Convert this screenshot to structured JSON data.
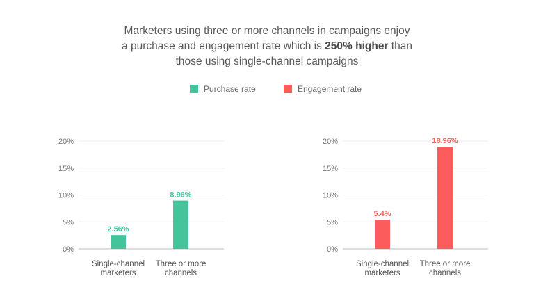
{
  "title": {
    "line1": "Marketers using three or more channels in campaigns enjoy",
    "line2_pre": "a purchase and engagement rate which is ",
    "line2_bold": "250% higher",
    "line2_post": " than",
    "line3": "those using single-channel campaigns"
  },
  "legend": {
    "purchase": "Purchase rate",
    "engagement": "Engagement rate"
  },
  "colors": {
    "purchase": "#45c49c",
    "engagement": "#fd5c5c"
  },
  "chart_data": [
    {
      "type": "bar",
      "categories": [
        [
          "Single-channel",
          "marketers"
        ],
        [
          "Three or more",
          "channels"
        ]
      ],
      "series": [
        {
          "name": "Purchase rate",
          "values": [
            2.56,
            8.96
          ]
        }
      ],
      "data_labels": [
        "2.56%",
        "8.96%"
      ],
      "yticks": [
        "0%",
        "5%",
        "10%",
        "15%",
        "20%"
      ],
      "ylim": [
        0,
        20
      ],
      "grid": true
    },
    {
      "type": "bar",
      "categories": [
        [
          "Single-channel",
          "marketers"
        ],
        [
          "Three or more",
          "channels"
        ]
      ],
      "series": [
        {
          "name": "Engagement rate",
          "values": [
            5.4,
            18.96
          ]
        }
      ],
      "data_labels": [
        "5.4%",
        "18.96%"
      ],
      "yticks": [
        "0%",
        "5%",
        "10%",
        "15%",
        "20%"
      ],
      "ylim": [
        0,
        20
      ],
      "grid": true
    }
  ]
}
